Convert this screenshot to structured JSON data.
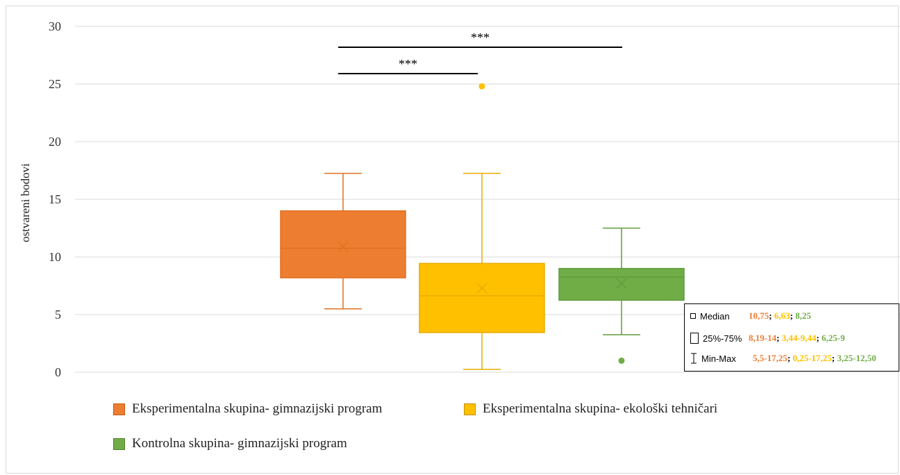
{
  "chart_data": {
    "type": "box",
    "title": "",
    "xlabel": "",
    "ylabel": "ostvareni bodovi",
    "ylim": [
      0,
      30
    ],
    "yticks": [
      "0",
      "5",
      "10",
      "15",
      "20",
      "25",
      "30"
    ],
    "grid": true,
    "series": [
      {
        "name": "Eksperimentalna skupina- gimnazijski program",
        "color": "#ED7D31",
        "min": 5.5,
        "q1": 8.19,
        "median": 10.75,
        "q3": 14,
        "max": 17.25,
        "mean": 10.9,
        "outliers": []
      },
      {
        "name": "Eksperimentalna skupina- ekološki tehničari",
        "color": "#FFC000",
        "min": 0.25,
        "q1": 3.44,
        "median": 6.63,
        "q3": 9.44,
        "max": 17.25,
        "mean": 7.3,
        "outliers": [
          24.8
        ]
      },
      {
        "name": "Kontrolna skupina- gimnazijski program",
        "color": "#70AD47",
        "min": 3.25,
        "q1": 6.25,
        "median": 8.25,
        "q3": 9,
        "max": 12.5,
        "mean": 7.7,
        "outliers": [
          1
        ]
      }
    ],
    "significance": [
      {
        "label": "***",
        "from": 0,
        "to": 1
      },
      {
        "label": "***",
        "from": 0,
        "to": 2
      }
    ],
    "stats_box": {
      "rows": [
        {
          "label": "Median",
          "icon": "median-square-icon",
          "values": [
            "10,75",
            "6,63",
            "8,25"
          ]
        },
        {
          "label": "25%-75%",
          "icon": "box-range-icon",
          "values": [
            "8,19-14",
            "3,44-9,44",
            "6,25-9"
          ]
        },
        {
          "label": "Min-Max",
          "icon": "whisker-range-icon",
          "values": [
            "5,5-17,25",
            "0,25-17,25",
            "3,25-12,50"
          ]
        }
      ],
      "value_colors": [
        "#ED7D31",
        "#FFC000",
        "#70AD47"
      ]
    },
    "legend_position": "bottom"
  }
}
